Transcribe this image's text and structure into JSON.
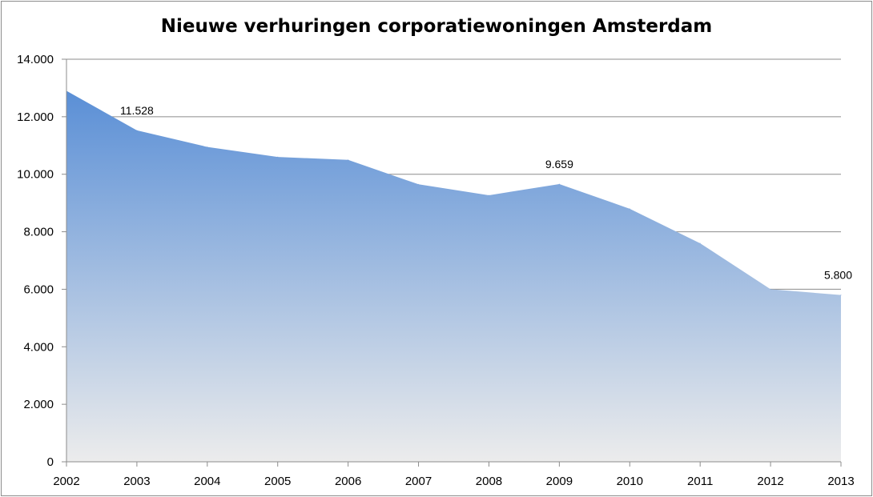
{
  "chart_data": {
    "type": "area",
    "title": "Nieuwe verhuringen corporatiewoningen Amsterdam",
    "xlabel": "",
    "ylabel": "",
    "x": [
      "2002",
      "2003",
      "2004",
      "2005",
      "2006",
      "2007",
      "2008",
      "2009",
      "2010",
      "2011",
      "2012",
      "2013"
    ],
    "values": [
      12900,
      11528,
      10950,
      10600,
      10500,
      9650,
      9270,
      9659,
      8800,
      7600,
      6000,
      5800
    ],
    "ylim": [
      0,
      14000
    ],
    "yticks": [
      0,
      2000,
      4000,
      6000,
      8000,
      10000,
      12000,
      14000
    ],
    "ytick_labels": [
      "0",
      "2.000",
      "4.000",
      "6.000",
      "8.000",
      "10.000",
      "12.000",
      "14.000"
    ],
    "data_labels": [
      {
        "index": 1,
        "text": "11.528"
      },
      {
        "index": 7,
        "text": "9.659"
      },
      {
        "index": 11,
        "text": "5.800"
      }
    ],
    "grid": true,
    "legend": "none",
    "colors": {
      "area_top": "#5a8fd6",
      "area_bottom": "#ececec",
      "grid": "#8c8c8c",
      "axis": "#8c8c8c"
    }
  }
}
